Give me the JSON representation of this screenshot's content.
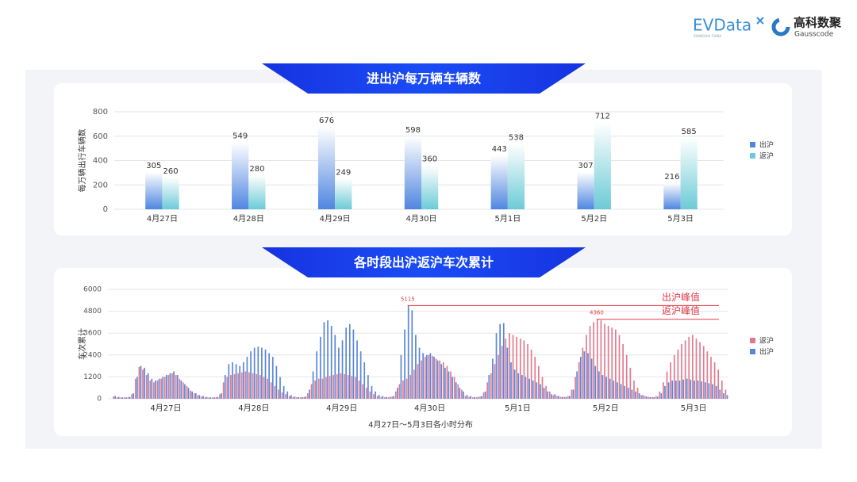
{
  "header": {
    "logo_1": "EVData",
    "logo_1_sub": "SHANGHAI CHINA",
    "logo_2": "高科数聚",
    "logo_2_sub": "Gausscode"
  },
  "chart_data": [
    {
      "type": "bar",
      "title": "进出沪每万辆车辆数",
      "y_label": "每万辆出行车辆数",
      "categories": [
        "4月27日",
        "4月28日",
        "4月29日",
        "4月30日",
        "5月1日",
        "5月2日",
        "5月3日"
      ],
      "series": [
        {
          "name": "出沪",
          "color": "#4f86e0",
          "values": [
            305,
            549,
            676,
            598,
            443,
            307,
            216
          ]
        },
        {
          "name": "返沪",
          "color": "#6ccbd6",
          "values": [
            260,
            280,
            249,
            360,
            538,
            712,
            585
          ]
        }
      ],
      "ylim": [
        0,
        800
      ],
      "yticks": [
        0,
        200,
        400,
        600,
        800
      ],
      "grid": true,
      "data_labels": true,
      "gradient": true,
      "legend": "right"
    },
    {
      "type": "bar",
      "title": "各时段出沪返沪车次累计",
      "y_label": "车次累计",
      "x_label": "4月27日～5月3日各小时分布",
      "categories": [
        null,
        null,
        null,
        null,
        null,
        null,
        null,
        null,
        null,
        null,
        null,
        null,
        null,
        null,
        "4月27日",
        null,
        null,
        null,
        null,
        null,
        null,
        null,
        null,
        null,
        null,
        null,
        null,
        null,
        null,
        null,
        null,
        null,
        null,
        null,
        null,
        null,
        null,
        null,
        "4月28日",
        null,
        null,
        null,
        null,
        null,
        null,
        null,
        null,
        null,
        null,
        null,
        null,
        null,
        null,
        null,
        null,
        null,
        null,
        null,
        null,
        null,
        null,
        null,
        "4月29日",
        null,
        null,
        null,
        null,
        null,
        null,
        null,
        null,
        null,
        null,
        null,
        null,
        null,
        null,
        null,
        null,
        null,
        null,
        null,
        null,
        null,
        null,
        null,
        "4月30日",
        null,
        null,
        null,
        null,
        null,
        null,
        null,
        null,
        null,
        null,
        null,
        null,
        null,
        null,
        null,
        null,
        null,
        null,
        null,
        null,
        null,
        null,
        null,
        "5月1日",
        null,
        null,
        null,
        null,
        null,
        null,
        null,
        null,
        null,
        null,
        null,
        null,
        null,
        null,
        null,
        null,
        null,
        null,
        null,
        null,
        null,
        null,
        null,
        "5月2日",
        null,
        null,
        null,
        null,
        null,
        null,
        null,
        null,
        null,
        null,
        null,
        null,
        null,
        null,
        null,
        null,
        null,
        null,
        null,
        null,
        null,
        null,
        null,
        "5月3日",
        null,
        null,
        null,
        null,
        null,
        null,
        null,
        null,
        null
      ],
      "series": [
        {
          "name": "返沪",
          "color": "#e07a90",
          "values": [
            130,
            90,
            70,
            70,
            90,
            250,
            1100,
            1750,
            1600,
            1300,
            1000,
            900,
            1000,
            1100,
            1200,
            1300,
            1400,
            1300,
            1100,
            900,
            700,
            450,
            300,
            200,
            120,
            90,
            70,
            70,
            90,
            250,
            900,
            1200,
            1300,
            1350,
            1400,
            1450,
            1500,
            1450,
            1400,
            1350,
            1300,
            1200,
            1100,
            900,
            700,
            500,
            350,
            250,
            150,
            100,
            80,
            80,
            100,
            300,
            800,
            1000,
            1100,
            1100,
            1200,
            1250,
            1300,
            1350,
            1400,
            1350,
            1300,
            1250,
            1200,
            1000,
            800,
            600,
            400,
            250,
            150,
            100,
            80,
            80,
            120,
            400,
            800,
            1000,
            1100,
            1300,
            1600,
            1900,
            2100,
            2300,
            2400,
            2350,
            2200,
            2100,
            2000,
            1800,
            1500,
            1200,
            800,
            500,
            150,
            100,
            80,
            80,
            120,
            350,
            900,
            1400,
            1900,
            2400,
            2900,
            3300,
            3600,
            3500,
            3400,
            3300,
            3200,
            3000,
            2700,
            2300,
            1800,
            1200,
            700,
            400,
            200,
            150,
            100,
            100,
            150,
            500,
            1200,
            2000,
            2800,
            3500,
            4000,
            4200,
            4360,
            4300,
            4100,
            4000,
            3900,
            3800,
            3500,
            3000,
            2400,
            1700,
            1000,
            600,
            200,
            150,
            100,
            100,
            150,
            400,
            900,
            1500,
            2000,
            2400,
            2700,
            3000,
            3200,
            3400,
            3500,
            3300,
            3100,
            2900,
            2600,
            2300,
            2000,
            1600,
            1000,
            500
          ]
        },
        {
          "name": "出沪",
          "color": "#5a86d8",
          "values": [
            150,
            100,
            80,
            80,
            100,
            300,
            1200,
            1800,
            1700,
            1400,
            1100,
            1000,
            1100,
            1200,
            1300,
            1400,
            1500,
            1300,
            1000,
            800,
            600,
            400,
            300,
            200,
            150,
            100,
            80,
            80,
            100,
            300,
            1300,
            1900,
            2000,
            1900,
            1800,
            2000,
            2300,
            2600,
            2800,
            2850,
            2800,
            2700,
            2500,
            2300,
            1800,
            1200,
            700,
            400,
            200,
            120,
            90,
            90,
            120,
            500,
            1500,
            2600,
            3400,
            4200,
            4300,
            4000,
            3500,
            2800,
            3200,
            3900,
            4100,
            3800,
            3200,
            2600,
            2000,
            1300,
            700,
            400,
            200,
            150,
            100,
            100,
            150,
            600,
            2400,
            3800,
            5115,
            4850,
            3500,
            2800,
            2500,
            2400,
            2500,
            2300,
            2100,
            1900,
            1700,
            1500,
            1200,
            900,
            600,
            400,
            200,
            150,
            100,
            100,
            150,
            400,
            1300,
            2200,
            3600,
            4100,
            4150,
            2800,
            2000,
            1600,
            1400,
            1300,
            1200,
            1100,
            1000,
            900,
            800,
            600,
            400,
            250,
            250,
            150,
            100,
            100,
            150,
            500,
            1500,
            2300,
            2600,
            2500,
            2200,
            1800,
            1500,
            1300,
            1200,
            1100,
            1000,
            900,
            800,
            700,
            600,
            500,
            400,
            300,
            200,
            120,
            90,
            90,
            120,
            300,
            700,
            900,
            1000,
            1000,
            1000,
            1050,
            1100,
            1050,
            1000,
            1000,
            950,
            900,
            850,
            800,
            700,
            500,
            300,
            200
          ]
        }
      ],
      "ylim": [
        0,
        6000
      ],
      "yticks": [
        0,
        1200,
        2400,
        3600,
        4800,
        6000
      ],
      "grid": true,
      "data_labels": false,
      "gradient": false,
      "legend": "right",
      "reference_lines": [
        {
          "name": "出沪峰值",
          "value": 5115,
          "color": "#e03a4a"
        },
        {
          "name": "返沪峰值",
          "value": 4360,
          "color": "#e03a4a"
        }
      ]
    }
  ]
}
